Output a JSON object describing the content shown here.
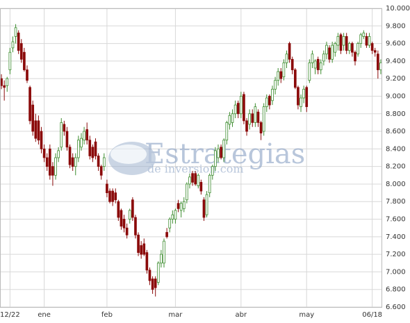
{
  "chart_data": {
    "type": "candlestick",
    "watermark": {
      "main": "Estrategias",
      "sub": "de inversion.com"
    },
    "up_color": "#3c8c2e",
    "down_color": "#8b0a0a",
    "grid": true,
    "xlim": [
      -0.5,
      133.5
    ],
    "xticks": [
      {
        "value": 3,
        "label": "12/22"
      },
      {
        "value": 15,
        "label": "ene"
      },
      {
        "value": 37,
        "label": "feb"
      },
      {
        "value": 61,
        "label": "mar"
      },
      {
        "value": 84,
        "label": "abr"
      },
      {
        "value": 107,
        "label": "may"
      },
      {
        "value": 130,
        "label": "06/18"
      }
    ],
    "ylim": [
      6.6,
      10.0
    ],
    "yticks": [
      {
        "value": 6.6,
        "label": "6.600"
      },
      {
        "value": 6.8,
        "label": "6.800"
      },
      {
        "value": 7.0,
        "label": "7.000"
      },
      {
        "value": 7.2,
        "label": "7.200"
      },
      {
        "value": 7.4,
        "label": "7.400"
      },
      {
        "value": 7.6,
        "label": "7.600"
      },
      {
        "value": 7.8,
        "label": "7.800"
      },
      {
        "value": 8.0,
        "label": "8.000"
      },
      {
        "value": 8.2,
        "label": "8.200"
      },
      {
        "value": 8.4,
        "label": "8.400"
      },
      {
        "value": 8.6,
        "label": "8.600"
      },
      {
        "value": 8.8,
        "label": "8.800"
      },
      {
        "value": 9.0,
        "label": "9.000"
      },
      {
        "value": 9.2,
        "label": "9.200"
      },
      {
        "value": 9.4,
        "label": "9.400"
      },
      {
        "value": 9.6,
        "label": "9.600"
      },
      {
        "value": 9.8,
        "label": "9.800"
      },
      {
        "value": 10.0,
        "label": "10.000"
      }
    ],
    "ohlc": [
      [
        9.2,
        9.25,
        9.08,
        9.12
      ],
      [
        9.12,
        9.18,
        8.95,
        9.1
      ],
      [
        9.12,
        9.22,
        9.05,
        9.2
      ],
      [
        9.3,
        9.55,
        9.25,
        9.5
      ],
      [
        9.55,
        9.68,
        9.5,
        9.62
      ],
      [
        9.68,
        9.82,
        9.6,
        9.78
      ],
      [
        9.72,
        9.75,
        9.48,
        9.52
      ],
      [
        9.6,
        9.65,
        9.38,
        9.42
      ],
      [
        9.5,
        9.55,
        9.28,
        9.3
      ],
      [
        9.3,
        9.35,
        9.15,
        9.18
      ],
      [
        9.1,
        9.12,
        8.68,
        8.72
      ],
      [
        8.9,
        8.95,
        8.55,
        8.6
      ],
      [
        8.72,
        8.8,
        8.48,
        8.52
      ],
      [
        8.72,
        8.78,
        8.45,
        8.5
      ],
      [
        8.6,
        8.65,
        8.35,
        8.4
      ],
      [
        8.4,
        8.45,
        8.25,
        8.3
      ],
      [
        8.3,
        8.35,
        8.15,
        8.2
      ],
      [
        8.4,
        8.45,
        8.05,
        8.1
      ],
      [
        8.2,
        8.25,
        7.98,
        8.1
      ],
      [
        8.1,
        8.35,
        8.05,
        8.3
      ],
      [
        8.3,
        8.42,
        8.25,
        8.38
      ],
      [
        8.42,
        8.75,
        8.38,
        8.7
      ],
      [
        8.68,
        8.72,
        8.55,
        8.6
      ],
      [
        8.6,
        8.65,
        8.38,
        8.42
      ],
      [
        8.42,
        8.45,
        8.18,
        8.22
      ],
      [
        8.3,
        8.35,
        8.15,
        8.2
      ],
      [
        8.2,
        8.35,
        8.1,
        8.3
      ],
      [
        8.3,
        8.55,
        8.25,
        8.5
      ],
      [
        8.42,
        8.58,
        8.38,
        8.52
      ],
      [
        8.5,
        8.65,
        8.45,
        8.6
      ],
      [
        8.62,
        8.7,
        8.45,
        8.5
      ],
      [
        8.5,
        8.55,
        8.28,
        8.32
      ],
      [
        8.42,
        8.45,
        8.25,
        8.3
      ],
      [
        8.48,
        8.52,
        8.28,
        8.32
      ],
      [
        8.32,
        8.35,
        8.15,
        8.2
      ],
      [
        8.2,
        8.22,
        8.05,
        8.1
      ],
      [
        8.2,
        8.35,
        8.15,
        8.3
      ],
      [
        8.0,
        8.05,
        7.85,
        7.9
      ],
      [
        7.92,
        7.95,
        7.78,
        7.8
      ],
      [
        7.92,
        7.95,
        7.75,
        7.8
      ],
      [
        7.9,
        7.95,
        7.78,
        7.82
      ],
      [
        7.8,
        7.82,
        7.58,
        7.62
      ],
      [
        7.7,
        7.72,
        7.48,
        7.52
      ],
      [
        7.6,
        7.65,
        7.45,
        7.5
      ],
      [
        7.5,
        7.55,
        7.38,
        7.42
      ],
      [
        7.6,
        7.72,
        7.55,
        7.7
      ],
      [
        7.82,
        7.85,
        7.58,
        7.62
      ],
      [
        7.62,
        7.65,
        7.38,
        7.42
      ],
      [
        7.42,
        7.45,
        7.18,
        7.22
      ],
      [
        7.3,
        7.35,
        7.15,
        7.2
      ],
      [
        7.32,
        7.38,
        7.18,
        7.2
      ],
      [
        7.22,
        7.25,
        6.98,
        7.02
      ],
      [
        7.02,
        7.05,
        6.85,
        6.9
      ],
      [
        6.92,
        6.95,
        6.75,
        6.8
      ],
      [
        6.92,
        6.95,
        6.72,
        6.82
      ],
      [
        6.88,
        7.12,
        6.85,
        7.1
      ],
      [
        7.1,
        7.25,
        7.05,
        7.2
      ],
      [
        7.1,
        7.38,
        7.05,
        7.35
      ],
      [
        7.45,
        7.5,
        7.38,
        7.4
      ],
      [
        7.5,
        7.62,
        7.45,
        7.6
      ],
      [
        7.6,
        7.7,
        7.55,
        7.65
      ],
      [
        7.6,
        7.72,
        7.55,
        7.7
      ],
      [
        7.78,
        7.82,
        7.68,
        7.72
      ],
      [
        7.7,
        7.8,
        7.62,
        7.78
      ],
      [
        7.72,
        7.85,
        7.68,
        7.8
      ],
      [
        7.82,
        8.02,
        7.78,
        8.0
      ],
      [
        8.0,
        8.12,
        7.95,
        8.08
      ],
      [
        8.12,
        8.15,
        7.98,
        8.02
      ],
      [
        8.12,
        8.15,
        7.98,
        8.0
      ],
      [
        7.98,
        8.12,
        7.95,
        8.1
      ],
      [
        8.02,
        8.05,
        7.88,
        7.92
      ],
      [
        7.82,
        7.85,
        7.58,
        7.62
      ],
      [
        7.65,
        7.92,
        7.62,
        7.88
      ],
      [
        7.9,
        8.12,
        7.85,
        8.1
      ],
      [
        8.1,
        8.22,
        8.05,
        8.2
      ],
      [
        8.2,
        8.42,
        8.15,
        8.38
      ],
      [
        8.3,
        8.45,
        8.25,
        8.4
      ],
      [
        8.42,
        8.45,
        8.28,
        8.3
      ],
      [
        8.3,
        8.52,
        8.25,
        8.5
      ],
      [
        8.5,
        8.72,
        8.45,
        8.7
      ],
      [
        8.68,
        8.82,
        8.62,
        8.78
      ],
      [
        8.7,
        8.85,
        8.65,
        8.8
      ],
      [
        8.8,
        8.95,
        8.75,
        8.9
      ],
      [
        8.92,
        8.95,
        8.75,
        8.8
      ],
      [
        8.8,
        9.05,
        8.75,
        9.0
      ],
      [
        9.02,
        9.05,
        8.68,
        8.72
      ],
      [
        8.72,
        8.75,
        8.55,
        8.6
      ],
      [
        8.68,
        8.85,
        8.62,
        8.8
      ],
      [
        8.8,
        8.85,
        8.65,
        8.7
      ],
      [
        8.7,
        8.92,
        8.65,
        8.88
      ],
      [
        8.82,
        8.85,
        8.65,
        8.7
      ],
      [
        8.7,
        8.72,
        8.5,
        8.58
      ],
      [
        8.6,
        8.92,
        8.55,
        8.88
      ],
      [
        8.88,
        9.02,
        8.82,
        8.98
      ],
      [
        9.0,
        9.02,
        8.85,
        8.9
      ],
      [
        8.95,
        9.12,
        8.9,
        9.08
      ],
      [
        9.08,
        9.22,
        9.02,
        9.18
      ],
      [
        9.18,
        9.32,
        9.12,
        9.28
      ],
      [
        9.28,
        9.32,
        9.15,
        9.2
      ],
      [
        9.22,
        9.42,
        9.18,
        9.38
      ],
      [
        9.38,
        9.52,
        9.32,
        9.48
      ],
      [
        9.6,
        9.62,
        9.38,
        9.42
      ],
      [
        9.42,
        9.45,
        9.25,
        9.3
      ],
      [
        9.3,
        9.32,
        9.08,
        9.1
      ],
      [
        9.1,
        9.12,
        8.85,
        8.9
      ],
      [
        8.88,
        9.02,
        8.82,
        8.98
      ],
      [
        8.98,
        9.12,
        8.92,
        9.08
      ],
      [
        9.1,
        9.12,
        8.82,
        8.88
      ],
      [
        9.18,
        9.42,
        9.15,
        9.38
      ],
      [
        9.38,
        9.52,
        9.32,
        9.48
      ],
      [
        9.32,
        9.42,
        9.25,
        9.4
      ],
      [
        9.42,
        9.45,
        9.25,
        9.3
      ],
      [
        9.3,
        9.42,
        9.25,
        9.38
      ],
      [
        9.4,
        9.52,
        9.35,
        9.48
      ],
      [
        9.48,
        9.62,
        9.42,
        9.58
      ],
      [
        9.55,
        9.58,
        9.38,
        9.42
      ],
      [
        9.42,
        9.62,
        9.38,
        9.58
      ],
      [
        9.5,
        9.62,
        9.45,
        9.6
      ],
      [
        9.58,
        9.72,
        9.52,
        9.68
      ],
      [
        9.7,
        9.72,
        9.48,
        9.52
      ],
      [
        9.58,
        9.72,
        9.52,
        9.68
      ],
      [
        9.68,
        9.72,
        9.48,
        9.52
      ],
      [
        9.52,
        9.62,
        9.48,
        9.6
      ],
      [
        9.6,
        9.62,
        9.45,
        9.5
      ],
      [
        9.5,
        9.52,
        9.35,
        9.4
      ],
      [
        9.48,
        9.62,
        9.45,
        9.6
      ],
      [
        9.6,
        9.72,
        9.55,
        9.7
      ],
      [
        9.68,
        9.75,
        9.65,
        9.72
      ],
      [
        9.68,
        9.72,
        9.55,
        9.58
      ],
      [
        9.58,
        9.72,
        9.55,
        9.68
      ],
      [
        9.6,
        9.62,
        9.48,
        9.52
      ],
      [
        9.52,
        9.55,
        9.45,
        9.5
      ],
      [
        9.48,
        9.52,
        9.2,
        9.3
      ],
      [
        9.3,
        9.42,
        9.25,
        9.38
      ]
    ]
  }
}
